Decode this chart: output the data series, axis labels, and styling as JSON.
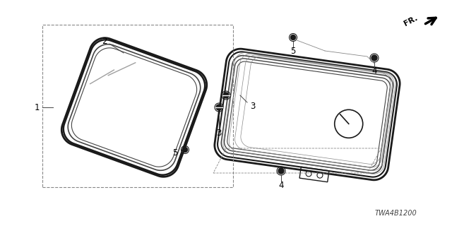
{
  "bg_color": "#ffffff",
  "line_color": "#000000",
  "dark_color": "#1a1a1a",
  "mid_color": "#444444",
  "light_color": "#888888",
  "diagram_code": "TWA4B1200",
  "figsize": [
    6.4,
    3.2
  ],
  "dpi": 100
}
